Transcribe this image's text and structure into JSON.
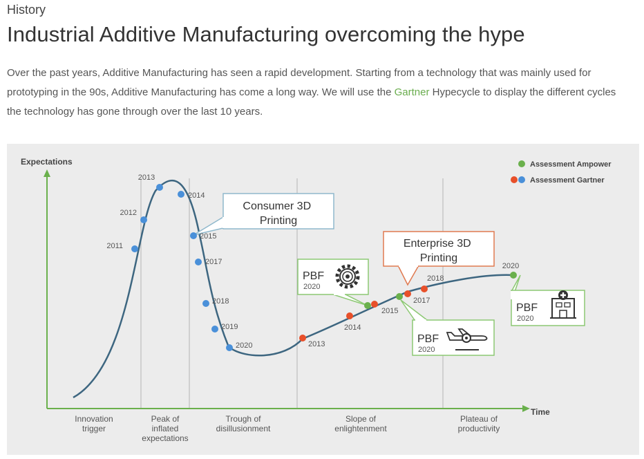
{
  "section": "History",
  "title": "Industrial Additive Manufacturing overcoming the hype",
  "intro": {
    "before": "Over the past years, Additive Manufacturing has seen a rapid development. Starting from a technology that was mainly used for prototyping in the 90s, Additive Manufacturing has come a long way. We will use the ",
    "link": "Gartner",
    "after": " Hypecycle to display the different cycles the technology has gone through over the last 10 years."
  },
  "chart": {
    "y_label": "Expectations",
    "x_label": "Time",
    "phases": [
      "Innovation\ntrigger",
      "Peak of\ninflated\nexpectations",
      "Trough of\ndisillusionment",
      "Slope of\nenlightenment",
      "Plateau of\nproductivity"
    ],
    "legend": {
      "ampower": "Assessment Ampower",
      "gartner": "Assessment Gartner"
    },
    "callouts": {
      "consumer": "Consumer 3D\nPrinting",
      "enterprise": "Enterprise 3D\nPrinting"
    },
    "pbf_boxes": [
      {
        "title": "PBF",
        "year": "2020",
        "icon": "gear-icon"
      },
      {
        "title": "PBF",
        "year": "2020",
        "icon": "airplane-icon"
      },
      {
        "title": "PBF",
        "year": "2020",
        "icon": "hospital-icon"
      }
    ],
    "consumer_points": [
      "2011",
      "2012",
      "2013",
      "2014",
      "2015",
      "2017",
      "2018",
      "2019",
      "2020"
    ],
    "enterprise_points": [
      "2013",
      "2014",
      "2015",
      "2017",
      "2018",
      "2020"
    ],
    "colors": {
      "curve": "#3d6680",
      "axis": "#6ab04c",
      "blue": "#4a90d9",
      "red": "#e8502a",
      "green": "#6ab04c",
      "consumer_box": "#8fb8cc",
      "enterprise_box": "#e07a50",
      "pbf_box": "#8cc873"
    }
  }
}
